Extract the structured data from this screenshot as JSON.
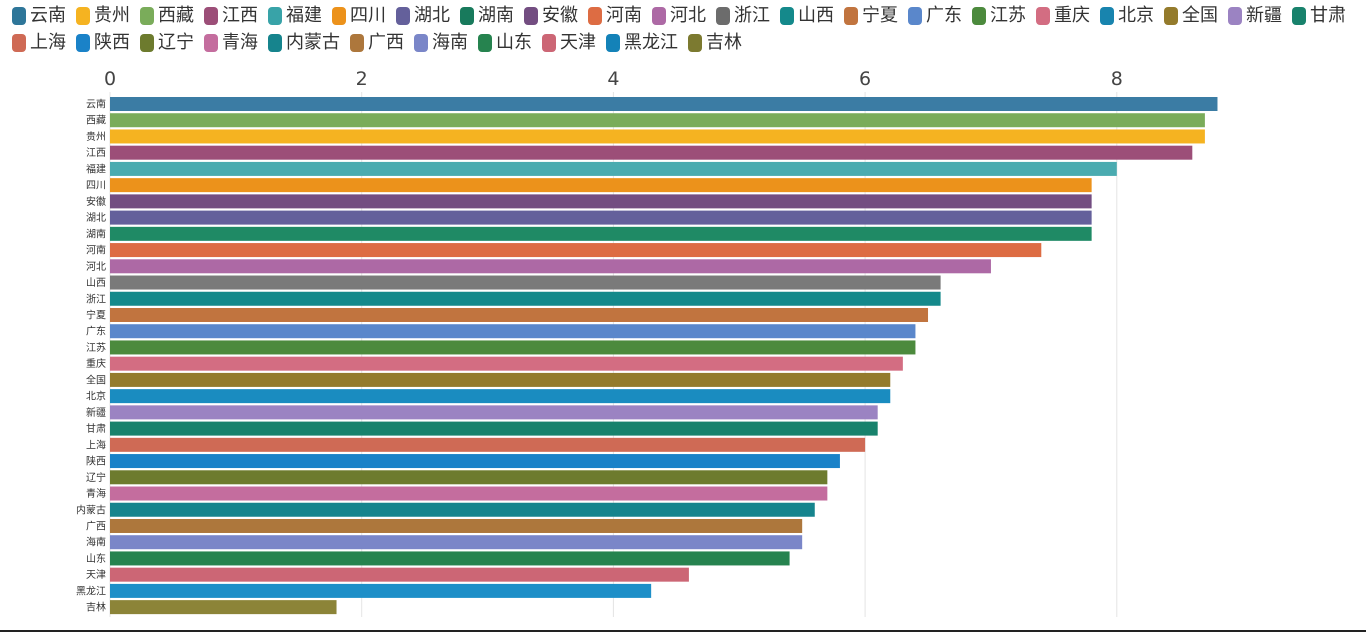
{
  "chart_data": {
    "type": "bar",
    "orientation": "horizontal",
    "title": "",
    "xlabel": "",
    "ylabel": "",
    "xlim": [
      0,
      8.8
    ],
    "xticks": [
      "0",
      "2",
      "4",
      "6",
      "8"
    ],
    "xtick_values": [
      0,
      2,
      4,
      6,
      8
    ],
    "legend_position": "top",
    "legend": [
      {
        "name": "云南",
        "color": "#2e7699"
      },
      {
        "name": "贵州",
        "color": "#f5b321"
      },
      {
        "name": "西藏",
        "color": "#7aac5a"
      },
      {
        "name": "江西",
        "color": "#9c4e78"
      },
      {
        "name": "福建",
        "color": "#38a3a8"
      },
      {
        "name": "四川",
        "color": "#ec921b"
      },
      {
        "name": "湖北",
        "color": "#64609b"
      },
      {
        "name": "湖南",
        "color": "#187a5c"
      },
      {
        "name": "安徽",
        "color": "#734d81"
      },
      {
        "name": "河南",
        "color": "#dd6c43"
      },
      {
        "name": "河北",
        "color": "#ad69a5"
      },
      {
        "name": "浙江",
        "color": "#6c6c6c"
      },
      {
        "name": "山西",
        "color": "#14898b"
      },
      {
        "name": "宁夏",
        "color": "#c1743f"
      },
      {
        "name": "广东",
        "color": "#5a87cb"
      },
      {
        "name": "江苏",
        "color": "#4c8a3d"
      },
      {
        "name": "重庆",
        "color": "#d36d82"
      },
      {
        "name": "北京",
        "color": "#1884ae"
      },
      {
        "name": "全国",
        "color": "#947b2c"
      },
      {
        "name": "新疆",
        "color": "#9b83c2"
      },
      {
        "name": "甘肃",
        "color": "#18826c"
      },
      {
        "name": "上海",
        "color": "#cf6a55"
      },
      {
        "name": "陕西",
        "color": "#1a82c8"
      },
      {
        "name": "辽宁",
        "color": "#6d7b2e"
      },
      {
        "name": "青海",
        "color": "#c46d9e"
      },
      {
        "name": "内蒙古",
        "color": "#16848d"
      },
      {
        "name": "广西",
        "color": "#ad773c"
      },
      {
        "name": "海南",
        "color": "#7a86c8"
      },
      {
        "name": "山东",
        "color": "#26834f"
      },
      {
        "name": "天津",
        "color": "#cc6675"
      },
      {
        "name": "黑龙江",
        "color": "#1482b8"
      },
      {
        "name": "吉林",
        "color": "#7c7a30"
      }
    ],
    "categories": [
      "云南",
      "西藏",
      "贵州",
      "江西",
      "福建",
      "四川",
      "安徽",
      "湖北",
      "湖南",
      "河南",
      "河北",
      "山西",
      "浙江",
      "宁夏",
      "广东",
      "江苏",
      "重庆",
      "全国",
      "北京",
      "新疆",
      "甘肃",
      "上海",
      "陕西",
      "辽宁",
      "青海",
      "内蒙古",
      "广西",
      "海南",
      "山东",
      "天津",
      "黑龙江",
      "吉林"
    ],
    "values": [
      8.8,
      8.7,
      8.7,
      8.6,
      8.0,
      7.8,
      7.8,
      7.8,
      7.8,
      7.4,
      7.0,
      6.6,
      6.6,
      6.5,
      6.4,
      6.4,
      6.3,
      6.2,
      6.2,
      6.1,
      6.1,
      6.0,
      5.8,
      5.7,
      5.7,
      5.6,
      5.5,
      5.5,
      5.4,
      4.6,
      4.3,
      1.8
    ],
    "colors": [
      "#3b7ca4",
      "#7aac5a",
      "#f5b321",
      "#9c4e78",
      "#4aabb0",
      "#ec921b",
      "#734d81",
      "#64609b",
      "#1f8a65",
      "#dd6c43",
      "#ad69a5",
      "#7a7a7a",
      "#14898b",
      "#c1743f",
      "#5a87cb",
      "#4c8a3d",
      "#d36d82",
      "#947b2c",
      "#1a8cc0",
      "#9b83c2",
      "#18826c",
      "#cf6a55",
      "#1a82c8",
      "#6d7b2e",
      "#c46d9e",
      "#16848d",
      "#ad773c",
      "#7a86c8",
      "#26834f",
      "#cc6675",
      "#1e8fc8",
      "#8c8438"
    ]
  }
}
